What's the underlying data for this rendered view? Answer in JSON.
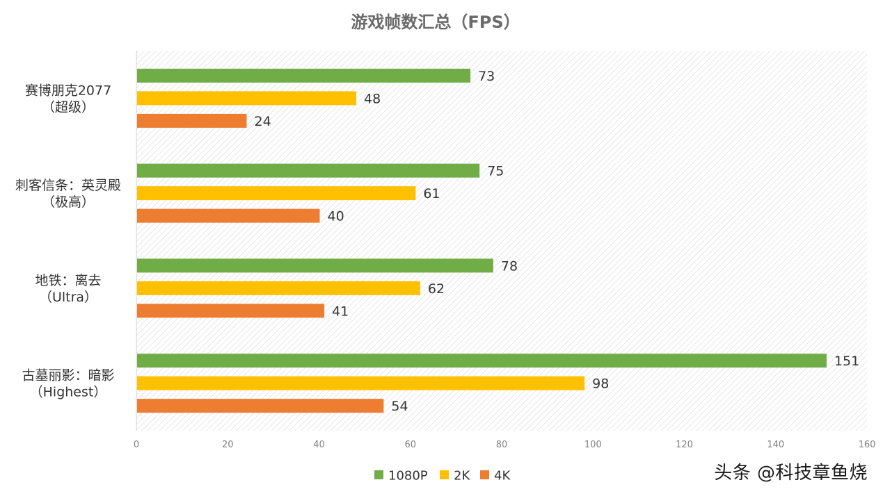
{
  "chart_data": {
    "type": "bar",
    "orientation": "horizontal",
    "title": "游戏帧数汇总（FPS）",
    "categories": [
      [
        "赛博朋克2077",
        "（超级）"
      ],
      [
        "刺客信条：英灵殿",
        "（极高）"
      ],
      [
        "地铁：离去",
        "（Ultra）"
      ],
      [
        "古墓丽影：暗影",
        "（Highest）"
      ]
    ],
    "series": [
      {
        "name": "1080P",
        "color": "#70ad47",
        "values": [
          73,
          75,
          78,
          151
        ]
      },
      {
        "name": "2K",
        "color": "#ffc000",
        "values": [
          48,
          61,
          62,
          98
        ]
      },
      {
        "name": "4K",
        "color": "#ed7d31",
        "values": [
          24,
          40,
          41,
          54
        ]
      }
    ],
    "xlim": [
      0,
      160
    ],
    "xticks": [
      0,
      20,
      40,
      60,
      80,
      100,
      120,
      140,
      160
    ],
    "grid": "hatched plot area",
    "legend_position": "bottom"
  },
  "watermark": "头条 @科技章鱼烧"
}
